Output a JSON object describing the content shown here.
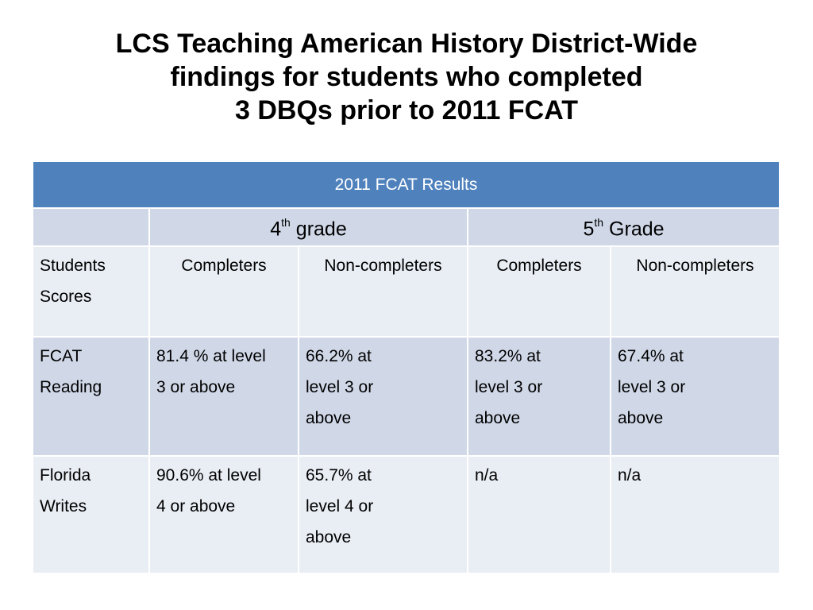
{
  "title": {
    "line1": "LCS Teaching American History District-Wide",
    "line2": "findings for students who completed",
    "line3": "3 DBQs prior to 2011 FCAT"
  },
  "table": {
    "header": "2011 FCAT Results",
    "grades": [
      {
        "num": "4",
        "sup": "th",
        "label": "grade"
      },
      {
        "num": "5",
        "sup": "th",
        "label": "Grade"
      }
    ],
    "row_label_header": [
      "Students",
      "Scores"
    ],
    "subheaders": [
      "Completers",
      "Non-completers",
      "Completers",
      "Non-completers"
    ],
    "rows": [
      {
        "label": [
          "FCAT",
          "Reading"
        ],
        "cells": [
          [
            "81.4 % at level",
            "3 or above"
          ],
          [
            "66.2% at",
            "level 3 or",
            "above"
          ],
          [
            "83.2% at",
            "level 3 or",
            "above"
          ],
          [
            "67.4% at",
            "level 3 or",
            "above"
          ]
        ]
      },
      {
        "label": [
          "Florida",
          "Writes"
        ],
        "cells": [
          [
            "90.6% at level",
            "4 or above"
          ],
          [
            "65.7% at",
            "level 4 or",
            "above"
          ],
          [
            "n/a"
          ],
          [
            "n/a"
          ]
        ]
      }
    ]
  },
  "colors": {
    "header_bg": "#4f81bd",
    "band_dark": "#d0d8e8",
    "band_light": "#e9edf4"
  }
}
